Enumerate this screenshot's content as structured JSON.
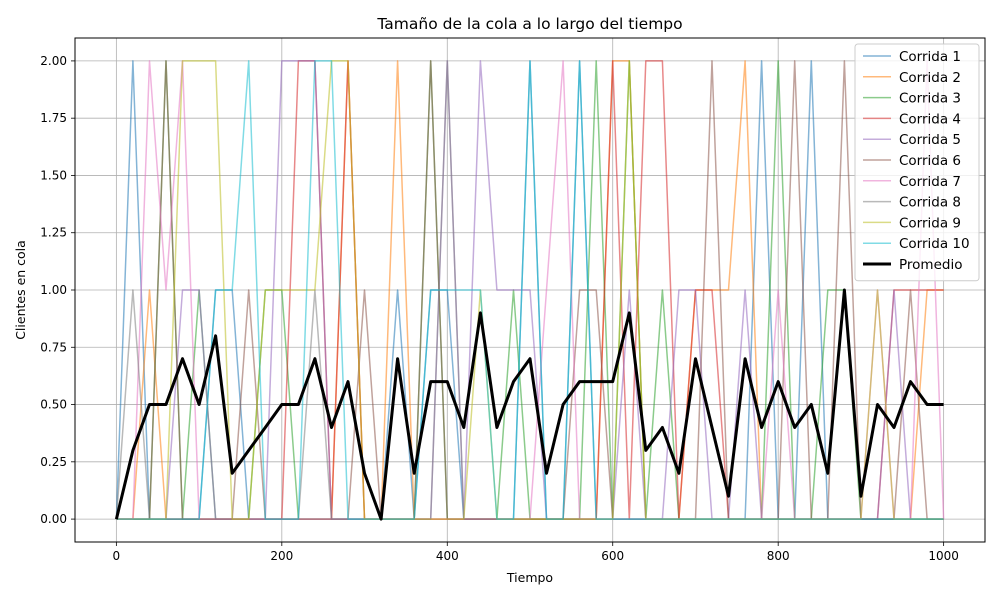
{
  "chart_data": {
    "type": "line",
    "title": "Tamaño de la cola a lo largo del tiempo",
    "xlabel": "Tiempo",
    "ylabel": "Clientes en cola",
    "xlim": [
      -50,
      1050
    ],
    "ylim": [
      -0.1,
      2.1
    ],
    "xticks": [
      0,
      200,
      400,
      600,
      800,
      1000
    ],
    "yticks": [
      "0.00",
      "0.25",
      "0.50",
      "0.75",
      "1.00",
      "1.25",
      "1.50",
      "1.75",
      "2.00"
    ],
    "grid": true,
    "legend_position": "top-right",
    "x": [
      0,
      20,
      40,
      60,
      80,
      100,
      120,
      140,
      160,
      180,
      200,
      220,
      240,
      260,
      280,
      300,
      320,
      340,
      360,
      380,
      400,
      420,
      440,
      460,
      480,
      500,
      520,
      540,
      560,
      580,
      600,
      620,
      640,
      660,
      680,
      700,
      720,
      740,
      760,
      780,
      800,
      820,
      840,
      860,
      880,
      900,
      920,
      940,
      960,
      980,
      1000
    ],
    "series": [
      {
        "name": "Corrida 1",
        "color": "#1f77b4",
        "values": [
          0,
          2,
          0,
          0,
          0,
          0,
          1,
          1,
          0,
          0,
          0,
          0,
          0,
          0,
          0,
          0,
          0,
          1,
          0,
          1,
          1,
          0,
          0,
          0,
          0,
          2,
          0,
          0,
          2,
          0,
          0,
          0,
          0,
          0,
          0,
          0,
          0,
          0,
          0,
          2,
          0,
          0,
          2,
          0,
          0,
          0,
          0,
          0,
          0,
          0,
          0
        ]
      },
      {
        "name": "Corrida 2",
        "color": "#ff7f0e",
        "values": [
          0,
          0,
          1,
          0,
          0,
          0,
          0,
          0,
          0,
          0,
          0,
          0,
          0,
          0,
          2,
          0,
          0,
          2,
          0,
          0,
          0,
          0,
          0,
          0,
          0,
          0,
          0,
          0,
          0,
          0,
          2,
          2,
          0,
          0,
          0,
          1,
          1,
          1,
          2,
          0,
          0,
          0,
          0,
          0,
          0,
          0,
          0,
          0,
          0,
          1,
          1
        ]
      },
      {
        "name": "Corrida 3",
        "color": "#2ca02c",
        "values": [
          0,
          0,
          0,
          2,
          0,
          1,
          0,
          0,
          0,
          1,
          1,
          0,
          0,
          0,
          0,
          0,
          0,
          0,
          0,
          2,
          0,
          0,
          0,
          0,
          1,
          0,
          0,
          0,
          0,
          2,
          0,
          2,
          0,
          1,
          0,
          0,
          0,
          0,
          0,
          0,
          2,
          0,
          0,
          1,
          1,
          0,
          0,
          0,
          0,
          0,
          0
        ]
      },
      {
        "name": "Corrida 4",
        "color": "#d62728",
        "values": [
          0,
          0,
          0,
          0,
          0,
          0,
          0,
          0,
          0,
          0,
          0,
          2,
          2,
          0,
          2,
          0,
          0,
          0,
          0,
          0,
          0,
          0,
          0,
          0,
          0,
          0,
          0,
          0,
          0,
          0,
          2,
          0,
          2,
          2,
          0,
          1,
          1,
          0,
          0,
          0,
          0,
          0,
          0,
          0,
          0,
          0,
          0,
          1,
          1,
          1,
          1
        ]
      },
      {
        "name": "Corrida 5",
        "color": "#9467bd",
        "values": [
          0,
          0,
          0,
          0,
          1,
          1,
          0,
          0,
          0,
          0,
          2,
          2,
          2,
          0,
          0,
          0,
          0,
          0,
          0,
          0,
          2,
          0,
          2,
          1,
          1,
          1,
          0,
          0,
          0,
          0,
          0,
          1,
          0,
          0,
          1,
          1,
          0,
          0,
          1,
          0,
          0,
          0,
          0,
          0,
          0,
          0,
          0,
          1,
          0,
          0,
          0
        ]
      },
      {
        "name": "Corrida 6",
        "color": "#8c564b",
        "values": [
          0,
          0,
          0,
          2,
          0,
          0,
          0,
          0,
          1,
          0,
          0,
          0,
          0,
          0,
          0,
          1,
          0,
          0,
          0,
          2,
          0,
          0,
          0,
          0,
          0,
          0,
          0,
          0,
          1,
          1,
          0,
          0,
          0,
          0,
          0,
          0,
          2,
          0,
          0,
          0,
          0,
          2,
          0,
          0,
          2,
          0,
          0,
          0,
          1,
          0,
          0
        ]
      },
      {
        "name": "Corrida 7",
        "color": "#e377c2",
        "values": [
          0,
          0,
          2,
          1,
          2,
          0,
          0,
          0,
          0,
          0,
          0,
          0,
          0,
          0,
          0,
          0,
          0,
          0,
          0,
          0,
          0,
          0,
          0,
          0,
          0,
          0,
          1,
          2,
          0,
          0,
          0,
          0,
          0,
          0,
          0,
          0,
          0,
          0,
          0,
          0,
          1,
          0,
          0,
          0,
          0,
          0,
          1,
          0,
          0,
          2,
          0
        ]
      },
      {
        "name": "Corrida 8",
        "color": "#7f7f7f",
        "values": [
          0,
          1,
          0,
          0,
          0,
          0,
          0,
          0,
          0,
          0,
          0,
          0,
          1,
          0,
          0,
          0,
          0,
          0,
          0,
          0,
          2,
          0,
          0,
          0,
          0,
          0,
          0,
          0,
          0,
          0,
          0,
          0,
          0,
          0,
          0,
          0,
          0,
          0,
          0,
          0,
          0,
          0,
          0,
          0,
          0,
          0,
          0,
          0,
          0,
          0,
          0
        ]
      },
      {
        "name": "Corrida 9",
        "color": "#bcbd22",
        "values": [
          0,
          0,
          0,
          0,
          2,
          2,
          2,
          0,
          0,
          1,
          1,
          1,
          1,
          2,
          2,
          0,
          0,
          0,
          0,
          0,
          0,
          0,
          1,
          0,
          0,
          0,
          0,
          0,
          0,
          0,
          0,
          2,
          0,
          0,
          0,
          0,
          0,
          0,
          0,
          0,
          0,
          0,
          0,
          0,
          0,
          0,
          1,
          0,
          0,
          0,
          0
        ]
      },
      {
        "name": "Corrida 10",
        "color": "#17becf",
        "values": [
          0,
          0,
          0,
          0,
          0,
          0,
          1,
          1,
          2,
          0,
          0,
          0,
          2,
          2,
          0,
          0,
          0,
          0,
          0,
          1,
          1,
          1,
          1,
          0,
          0,
          2,
          0,
          0,
          2,
          0,
          0,
          0,
          0,
          0,
          0,
          0,
          0,
          0,
          0,
          0,
          0,
          0,
          0,
          0,
          0,
          0,
          0,
          0,
          0,
          0,
          0
        ]
      },
      {
        "name": "Promedio",
        "color": "#000000",
        "values": [
          0,
          0.3,
          0.5,
          0.5,
          0.7,
          0.5,
          0.8,
          0.2,
          0.3,
          0.4,
          0.5,
          0.5,
          0.7,
          0.4,
          0.6,
          0.2,
          0,
          0.7,
          0.2,
          0.6,
          0.6,
          0.4,
          0.9,
          0.4,
          0.6,
          0.7,
          0.2,
          0.5,
          0.6,
          0.6,
          0.6,
          0.9,
          0.3,
          0.4,
          0.2,
          0.7,
          0.4,
          0.1,
          0.7,
          0.4,
          0.6,
          0.4,
          0.5,
          0.2,
          1.0,
          0.1,
          0.5,
          0.4,
          0.6,
          0.5,
          0.5
        ]
      }
    ]
  }
}
